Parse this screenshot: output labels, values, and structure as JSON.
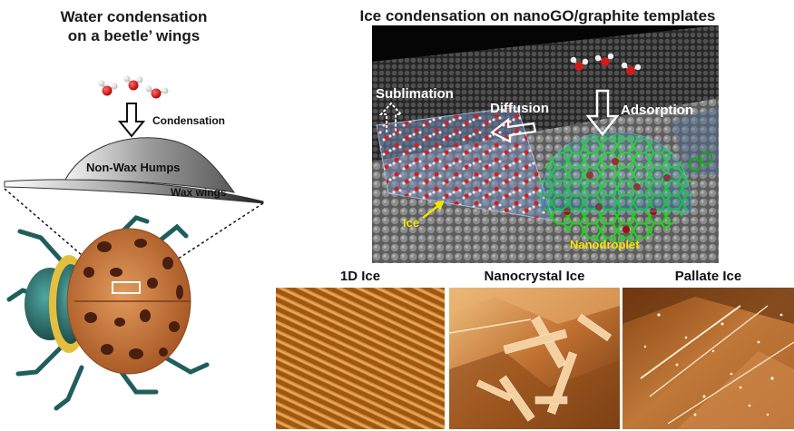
{
  "left": {
    "title_line1": "Water condensation",
    "title_line2": "on a beetle’ wings",
    "condensation_label": "Condensation",
    "humps_label": "Non-Wax Humps",
    "wings_label": "Wax wings"
  },
  "right": {
    "title": "Ice condensation on nanoGO/graphite templates",
    "sublimation_label": "Sublimation",
    "diffusion_label": "Diffusion",
    "adsorption_label": "Adsorption",
    "ice_label": "Ice",
    "nanodroplet_label": "Nanodroplet"
  },
  "panels": [
    {
      "title": "1D Ice"
    },
    {
      "title": "Nanocrystal Ice"
    },
    {
      "title": "Pallate Ice"
    }
  ],
  "colors": {
    "accent_yellow": "#f2e600",
    "graphene_green": "#1fc41f",
    "shell_orange": "#c8743a",
    "beetle_teal": "#1f5e5c",
    "afm_orange": "#c97a2c"
  }
}
